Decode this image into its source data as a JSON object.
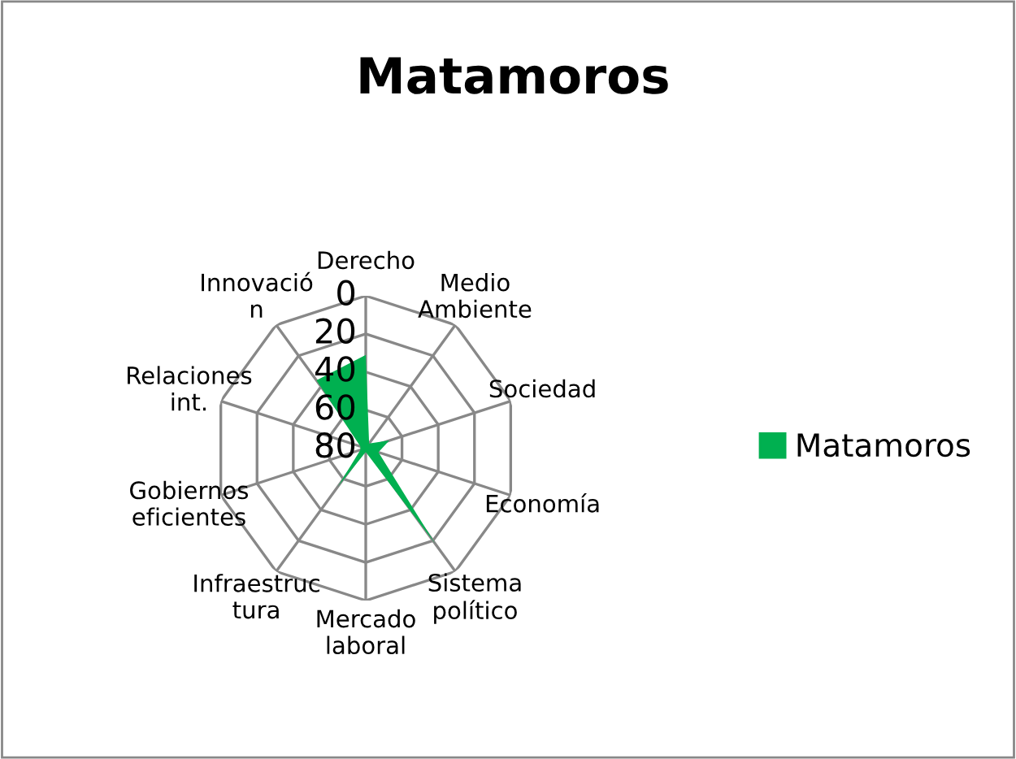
{
  "chart_data": {
    "type": "radar",
    "title": "Matamoros",
    "categories": [
      "Derecho",
      "Medio\nAmbiente",
      "Sociedad",
      "Economía",
      "Sistema\npolítico",
      "Mercado\nlaboral",
      "Infraestruc\ntura",
      "Gobiernos\neficientes",
      "Relaciones\nint.",
      "Innovació\nn"
    ],
    "series": [
      {
        "name": "Matamoros",
        "color": "#00b050",
        "type": "area",
        "values": [
          31,
          77,
          67,
          73,
          18,
          78,
          55,
          77,
          77,
          36
        ]
      }
    ],
    "ylim": [
      80,
      0
    ],
    "yticks": [
      0,
      20,
      40,
      60,
      80
    ],
    "grid": true,
    "legend": "right"
  }
}
